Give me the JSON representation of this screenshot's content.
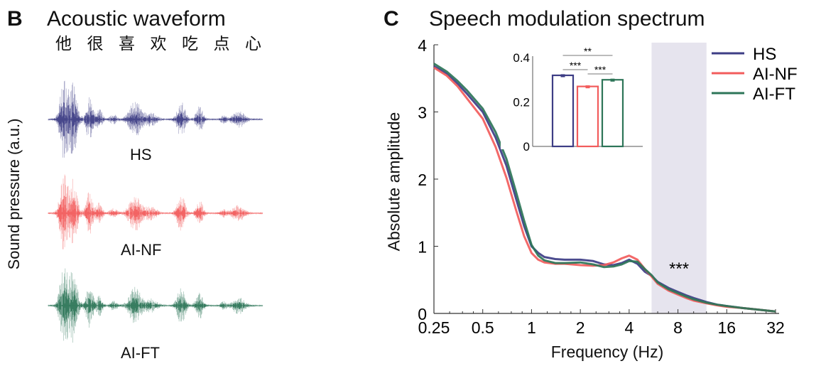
{
  "panel_b": {
    "letter": "B",
    "title": "Acoustic waveform",
    "sentence": [
      "他",
      "很",
      "喜",
      "欢",
      "吃",
      "点",
      "心"
    ],
    "ylabel": "Sound pressure (a.u.)",
    "waveforms": [
      {
        "label": "HS",
        "color": "#3d3d85"
      },
      {
        "label": "AI-NF",
        "color": "#f25c5c"
      },
      {
        "label": "AI-FT",
        "color": "#2d7558"
      }
    ]
  },
  "chart_data": [
    {
      "type": "line",
      "panel_letter": "C",
      "title": "Speech modulation spectrum",
      "xlabel": "Frequency (Hz)",
      "ylabel": "Absolute amplitude",
      "xscale": "log2",
      "xlim": [
        0.25,
        32
      ],
      "ylim": [
        0,
        4
      ],
      "xticks": [
        "0.25",
        "0.5",
        "1",
        "2",
        "4",
        "8",
        "16",
        "32"
      ],
      "yticks": [
        "0",
        "1",
        "2",
        "3",
        "4"
      ],
      "grid": false,
      "legend": "top-right",
      "shaded_region": {
        "x": [
          5.5,
          12
        ],
        "color": "#e6e4ee",
        "annotation": "***"
      },
      "x": [
        0.25,
        0.3,
        0.35,
        0.4,
        0.5,
        0.6,
        0.7,
        0.8,
        0.9,
        1,
        1.1,
        1.2,
        1.4,
        1.6,
        2,
        2.4,
        2.8,
        3.2,
        3.6,
        4,
        4.5,
        5,
        5.5,
        6,
        7,
        8,
        9,
        10,
        12,
        14,
        16,
        20,
        24,
        32
      ],
      "series": [
        {
          "name": "HS",
          "color": "#3d3d85",
          "values": [
            3.68,
            3.57,
            3.42,
            3.27,
            3.0,
            2.62,
            2.2,
            1.72,
            1.3,
            1.0,
            0.9,
            0.84,
            0.81,
            0.8,
            0.8,
            0.78,
            0.73,
            0.72,
            0.75,
            0.8,
            0.74,
            0.62,
            0.56,
            0.47,
            0.38,
            0.32,
            0.27,
            0.23,
            0.17,
            0.13,
            0.11,
            0.08,
            0.06,
            0.03
          ]
        },
        {
          "name": "AI-NF",
          "color": "#f25c5c",
          "values": [
            3.66,
            3.54,
            3.38,
            3.2,
            2.9,
            2.48,
            2.02,
            1.55,
            1.15,
            0.9,
            0.8,
            0.76,
            0.74,
            0.74,
            0.72,
            0.71,
            0.72,
            0.76,
            0.82,
            0.86,
            0.8,
            0.66,
            0.55,
            0.44,
            0.34,
            0.28,
            0.23,
            0.19,
            0.15,
            0.12,
            0.1,
            0.08,
            0.06,
            0.03
          ]
        },
        {
          "name": "AI-FT",
          "color": "#2d7558",
          "values": [
            3.72,
            3.6,
            3.46,
            3.32,
            3.05,
            2.7,
            2.3,
            1.82,
            1.38,
            1.02,
            0.86,
            0.79,
            0.75,
            0.75,
            0.76,
            0.73,
            0.69,
            0.7,
            0.73,
            0.78,
            0.77,
            0.66,
            0.57,
            0.46,
            0.36,
            0.3,
            0.25,
            0.21,
            0.16,
            0.13,
            0.11,
            0.08,
            0.06,
            0.03
          ]
        }
      ],
      "inset": {
        "type": "bar",
        "categories": [
          "HS",
          "AI-NF",
          "AI-FT"
        ],
        "values": [
          0.32,
          0.27,
          0.3
        ],
        "errors": [
          0.005,
          0.005,
          0.005
        ],
        "colors": [
          "#3d3d85",
          "#f25c5c",
          "#2d7558"
        ],
        "ylim": [
          0,
          0.4
        ],
        "yticks": [
          "0",
          "0.2",
          "0.4"
        ],
        "significance": [
          {
            "pair": [
              "HS",
              "AI-FT"
            ],
            "label": "**"
          },
          {
            "pair": [
              "HS",
              "AI-NF"
            ],
            "label": "***"
          },
          {
            "pair": [
              "AI-NF",
              "AI-FT"
            ],
            "label": "***"
          }
        ]
      }
    }
  ]
}
